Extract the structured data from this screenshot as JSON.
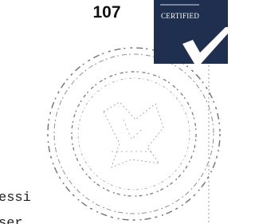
{
  "page_number": "107",
  "badge": {
    "label": "CERTIFIED"
  },
  "text_fragments": [
    "essi",
    "ser"
  ]
}
